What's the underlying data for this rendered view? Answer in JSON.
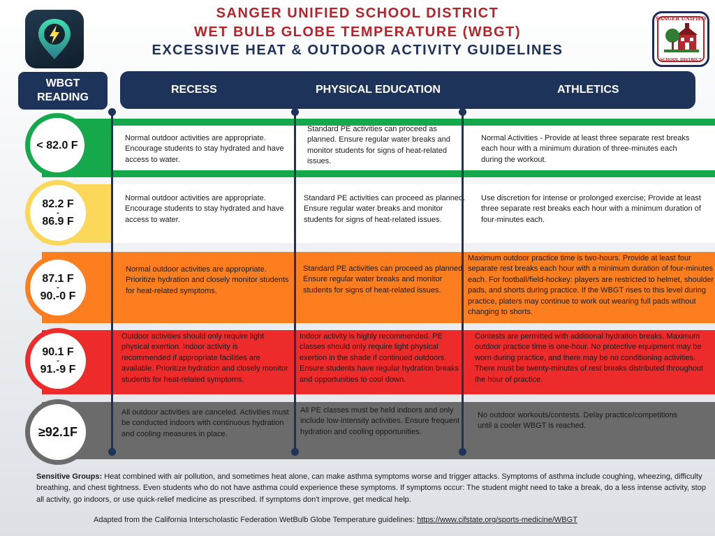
{
  "header": {
    "line1": "SANGER UNIFIED SCHOOL DISTRICT",
    "line2": "WET BULB GLOBE TEMPERATURE (WBGT)",
    "line3": "EXCESSIVE HEAT & OUTDOOR ACTIVITY GUIDELINES"
  },
  "logo": {
    "top_text": "SANGER UNIFIED",
    "bottom_text": "SCHOOL DISTRICT",
    "icon": "school-house-seal-icon"
  },
  "app_icon": {
    "icon": "location-pin-lightning-icon"
  },
  "columns": {
    "wbgt_line1": "WBGT",
    "wbgt_line2": "READING",
    "recess": "RECESS",
    "pe": "PHYSICAL EDUCATION",
    "athletics": "ATHLETICS"
  },
  "colors": {
    "green": "#15a94c",
    "yellow": "#fcd85a",
    "orange": "#fc7e1e",
    "red": "#ee2b2b",
    "gray": "#6b6b6b",
    "navy": "#1d3359"
  },
  "rows": [
    {
      "reading": "< 82.0 F",
      "recess": "Normal outdoor activities are appropriate. Encourage students to stay hydrated and have access to water.",
      "pe": "Standard PE activities can proceed as planned. Ensure regular water breaks and monitor students for signs of heat-related issues.",
      "athletics": "Normal Activities - Provide at least three separate rest breaks each hour with a minimum duration of three-minutes each during the workout."
    },
    {
      "reading_top": "82.2 F",
      "reading_sep": "-",
      "reading_bottom": "86.9 F",
      "recess": "Normal outdoor activities are appropriate. Encourage students to stay hydrated and have access to water.",
      "pe": "Standard PE activities can proceed as planned. Ensure regular water breaks and monitor students for signs of heat-related issues.",
      "athletics": "Use discretion for intense or prolonged exercise; Provide at least three separate rest breaks each hour with a minimum duration of four-minutes each."
    },
    {
      "reading_top": "87.1 F",
      "reading_sep": "-",
      "reading_bottom": "90.-0 F",
      "recess": "Normal outdoor activities are appropriate. Prioritize hydration and closely monitor students for heat-related symptoms.",
      "pe": "Standard PE activities can proceed as planned. Ensure regular water breaks and monitor students for signs of heat-related issues.",
      "athletics": "Maximum outdoor practice time is two-hours. Provide at least four separate rest breaks each hour with a minimum duration of four-minutes each. For football/field-hockey: players are restricted to helmet, shoulder pads, and shorts during practice. If the WBGT rises to this level during practice, platers may continue to work out wearing full pads without changing to shorts."
    },
    {
      "reading_top": "90.1 F",
      "reading_sep": "-",
      "reading_bottom": "91.-9 F",
      "recess": "Outdoor activities should only require light physical exertion. Indoor activity is recommended if appropriate facilities are available. Prioritize hydration and closely monitor students for heat-related symptoms.",
      "pe": "Indoor activity is highly recommended. PE classes should only require light physical exertion in the shade if continued outdoors. Ensure students have regular hydration breaks and opportunities to cool down.",
      "athletics": "Contests are permitted with additional hydration breaks. Maximum outdoor practice time is one-hour. No protective equipment may be worn during practice, and there may be no conditioning activities. There must be twenty-minutes of rest breaks distributed throughout the hour of practice."
    },
    {
      "reading": "≥92.1F",
      "recess": "All outdoor activities are canceled. Activities must be conducted indoors with continuous hydration and cooling measures in place.",
      "pe": "All PE classes must be held indoors and only include low-intensity activities. Ensure frequent hydration and cooling opportunities.",
      "athletics": "No outdoor workouts/contests. Delay practice/competitions until a cooler WBGT is reached."
    }
  ],
  "footnote": {
    "label": "Sensitive Groups:",
    "text": " Heat combined with air pollution, and sometimes heat alone, can make asthma symptoms worse and trigger attacks. Symptoms of asthma include coughing, wheezing, difficulty breathing, and chest tightness. Even students who do not have asthma could experience these symptoms. If symptoms occur: The student might need to take a break, do a less intense activity, stop all activity, go indoors, or use quick-relief medicine as prescribed. If symptoms don't improve, get medical help."
  },
  "source": {
    "text": "Adapted from the California Interscholastic Federation WetBulb Globe Temperature guidelines: ",
    "link": "https://www.cifstate.org/sports-medicine/WBGT"
  }
}
